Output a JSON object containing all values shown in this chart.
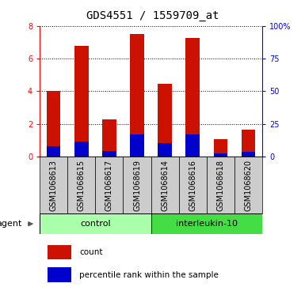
{
  "title": "GDS4551 / 1559709_at",
  "samples": [
    "GSM1068613",
    "GSM1068615",
    "GSM1068617",
    "GSM1068619",
    "GSM1068614",
    "GSM1068616",
    "GSM1068618",
    "GSM1068620"
  ],
  "count_values": [
    4.02,
    6.75,
    2.25,
    7.5,
    4.45,
    7.25,
    1.05,
    1.65
  ],
  "percentile_values": [
    0.62,
    0.9,
    0.35,
    1.35,
    0.82,
    1.35,
    0.2,
    0.28
  ],
  "groups": [
    {
      "label": "control",
      "indices": [
        0,
        1,
        2,
        3
      ],
      "color": "#AAFFAA"
    },
    {
      "label": "interleukin-10",
      "indices": [
        4,
        5,
        6,
        7
      ],
      "color": "#44DD44"
    }
  ],
  "bar_color": "#CC1100",
  "percentile_color": "#0000CC",
  "ylim_left": [
    0,
    8
  ],
  "ylim_right": [
    0,
    100
  ],
  "yticks_left": [
    0,
    2,
    4,
    6,
    8
  ],
  "yticks_right": [
    0,
    25,
    50,
    75,
    100
  ],
  "ytick_labels_right": [
    "0",
    "25",
    "50",
    "75",
    "100%"
  ],
  "xtick_bg": "#CCCCCC",
  "bar_width": 0.5,
  "agent_label": "agent",
  "legend_count": "count",
  "legend_percentile": "percentile rank within the sample",
  "title_fontsize": 10,
  "tick_fontsize": 7,
  "label_fontsize": 8
}
